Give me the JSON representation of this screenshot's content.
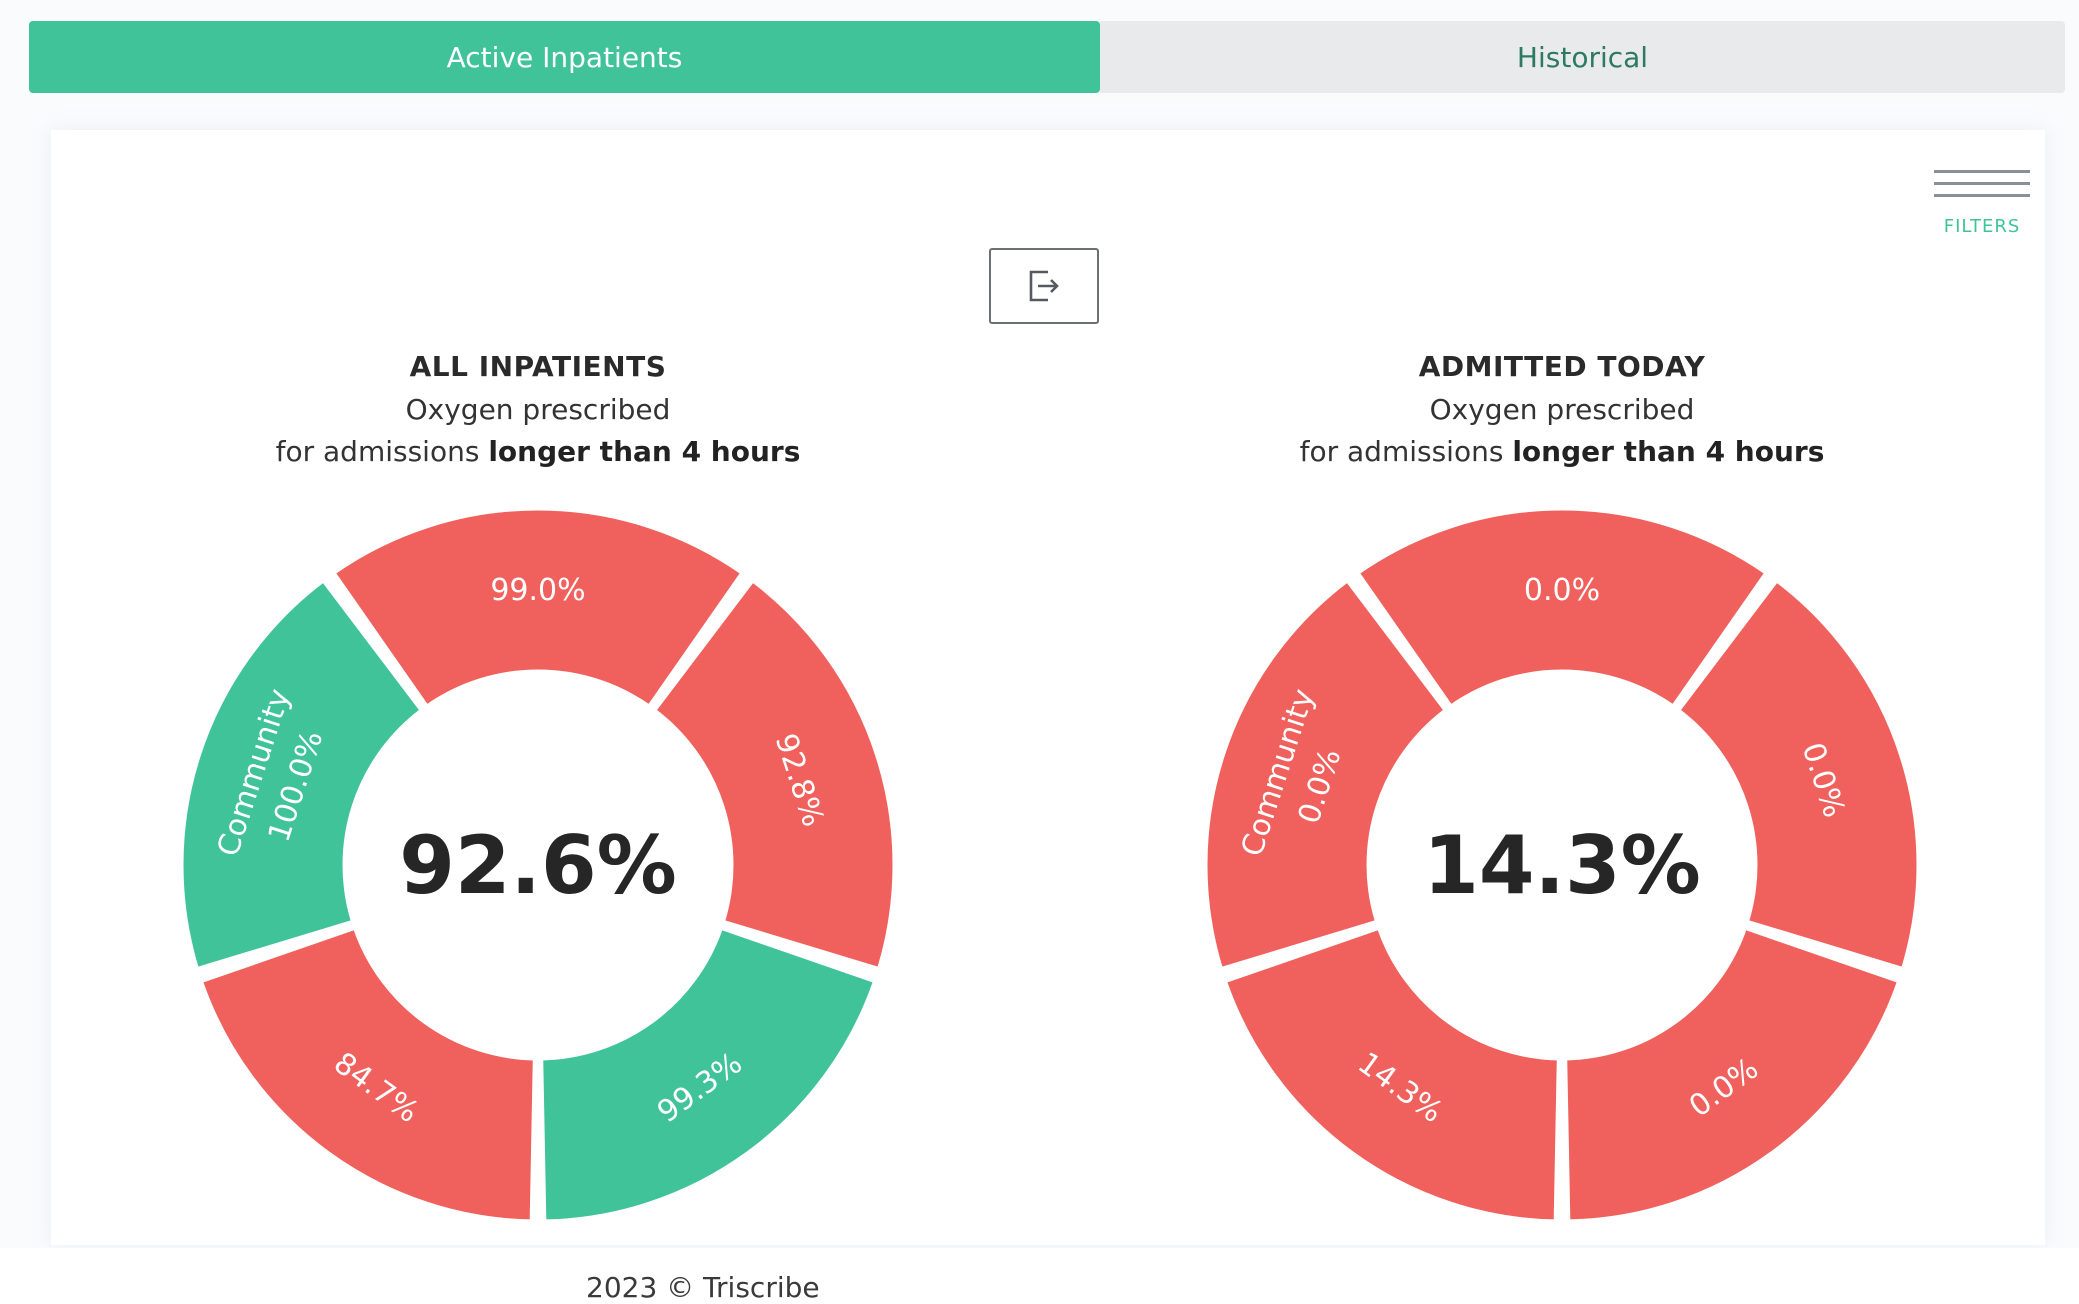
{
  "tabs": [
    {
      "label": "Active Inpatients",
      "active": true
    },
    {
      "label": "Historical",
      "active": false
    }
  ],
  "filters": {
    "label": "FILTERS",
    "icon": "filter-lines-icon"
  },
  "export": {
    "icon": "export-icon"
  },
  "colors": {
    "good": "#41c39a",
    "bad": "#f0605c",
    "accent": "#41c39a"
  },
  "charts": [
    {
      "title": "ALL INPATIENTS",
      "subtitle_line1": "Oxygen prescribed",
      "subtitle_prefix": "for admissions",
      "subtitle_bold": "longer than 4 hours",
      "center_value": "92.6%"
    },
    {
      "title": "ADMITTED TODAY",
      "subtitle_line1": "Oxygen prescribed",
      "subtitle_prefix": "for admissions",
      "subtitle_bold": "longer than 4 hours",
      "center_value": "14.3%"
    }
  ],
  "chart_data": [
    {
      "type": "pie",
      "title": "ALL INPATIENTS",
      "center": "92.6%",
      "segments": [
        {
          "name": "Community",
          "label": "100.0%",
          "value": 100.0,
          "status": "good"
        },
        {
          "name": "",
          "label": "99.0%",
          "value": 99.0,
          "status": "bad"
        },
        {
          "name": "",
          "label": "92.8%",
          "value": 92.8,
          "status": "bad"
        },
        {
          "name": "",
          "label": "99.3%",
          "value": 99.3,
          "status": "good"
        },
        {
          "name": "",
          "label": "84.7%",
          "value": 84.7,
          "status": "bad"
        }
      ]
    },
    {
      "type": "pie",
      "title": "ADMITTED TODAY",
      "center": "14.3%",
      "segments": [
        {
          "name": "Community",
          "label": "0.0%",
          "value": 0.0,
          "status": "bad"
        },
        {
          "name": "",
          "label": "0.0%",
          "value": 0.0,
          "status": "bad"
        },
        {
          "name": "",
          "label": "0.0%",
          "value": 0.0,
          "status": "bad"
        },
        {
          "name": "",
          "label": "0.0%",
          "value": 0.0,
          "status": "bad"
        },
        {
          "name": "",
          "label": "14.3%",
          "value": 14.3,
          "status": "bad"
        }
      ]
    }
  ],
  "footer": {
    "text": "2023 © Triscribe"
  }
}
